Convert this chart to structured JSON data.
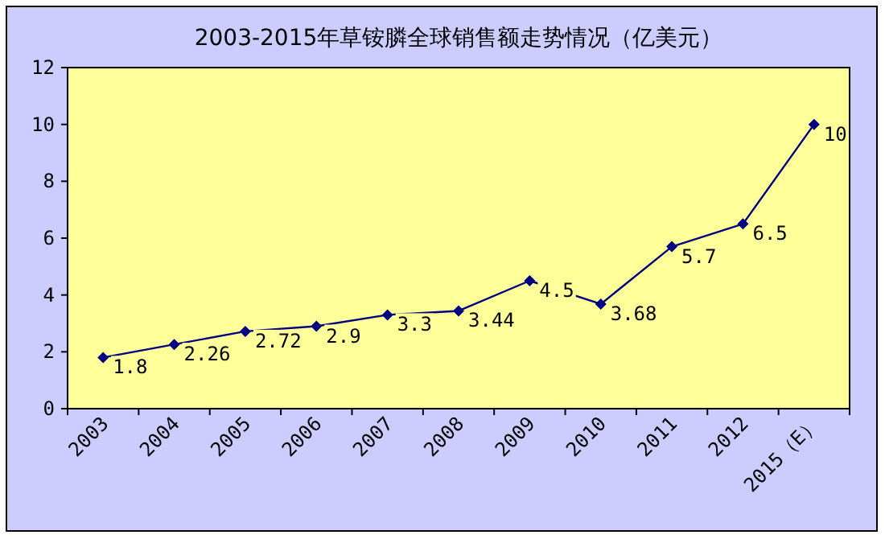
{
  "chart_data": {
    "type": "line",
    "title": "2003-2015年草铵膦全球销售额走势情况（亿美元）",
    "categories": [
      "2003",
      "2004",
      "2005",
      "2006",
      "2007",
      "2008",
      "2009",
      "2010",
      "2011",
      "2012",
      "2015（E）"
    ],
    "series": [
      {
        "color": "#000080",
        "values": [
          1.8,
          2.26,
          2.72,
          2.9,
          3.3,
          3.44,
          4.5,
          3.68,
          5.7,
          6.5,
          10
        ]
      }
    ],
    "ylim": [
      0,
      12
    ],
    "yticks": [
      0,
      2,
      4,
      6,
      8,
      10,
      12
    ],
    "data_labels": true,
    "marker": "diamond"
  }
}
